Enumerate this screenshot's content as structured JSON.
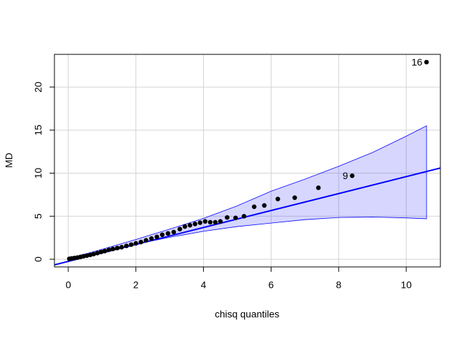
{
  "chart_data": {
    "type": "qqplot",
    "xlabel": "chisq quantiles",
    "ylabel": "MD",
    "xlim": [
      -0.41,
      11.01
    ],
    "ylim": [
      -0.89,
      23.8
    ],
    "xticks": [
      0,
      2,
      4,
      6,
      8,
      10
    ],
    "yticks": [
      0,
      5,
      10,
      15,
      20
    ],
    "grid": true,
    "point_color": "#000000",
    "line_color": "#0000ff",
    "band_color": "#0000ff",
    "x": [
      0.03,
      0.1,
      0.18,
      0.27,
      0.36,
      0.45,
      0.55,
      0.65,
      0.75,
      0.86,
      0.97,
      1.08,
      1.2,
      1.32,
      1.45,
      1.58,
      1.72,
      1.86,
      2.0,
      2.15,
      2.3,
      2.46,
      2.62,
      2.78,
      2.95,
      3.12,
      3.3,
      3.45,
      3.6,
      3.75,
      3.9,
      4.05,
      4.2,
      4.35,
      4.5,
      4.7,
      4.95,
      5.2,
      5.5,
      5.8,
      6.2,
      6.7,
      7.4,
      8.4,
      10.6
    ],
    "values": [
      0.05,
      0.1,
      0.15,
      0.2,
      0.27,
      0.35,
      0.42,
      0.5,
      0.6,
      0.72,
      0.85,
      0.95,
      1.1,
      1.2,
      1.3,
      1.4,
      1.55,
      1.7,
      1.85,
      2.0,
      2.2,
      2.4,
      2.6,
      2.85,
      3.0,
      3.15,
      3.5,
      3.8,
      3.95,
      4.1,
      4.25,
      4.4,
      4.3,
      4.3,
      4.4,
      4.85,
      4.8,
      5.0,
      6.1,
      6.25,
      7.0,
      7.15,
      8.3,
      9.7,
      22.9
    ],
    "labels": [
      null,
      null,
      null,
      null,
      null,
      null,
      null,
      null,
      null,
      null,
      null,
      null,
      null,
      null,
      null,
      null,
      null,
      null,
      null,
      null,
      null,
      null,
      null,
      null,
      null,
      null,
      null,
      null,
      null,
      null,
      null,
      null,
      null,
      null,
      null,
      null,
      null,
      null,
      null,
      null,
      null,
      null,
      null,
      "9",
      "16"
    ],
    "ref_line": {
      "intercept": -0.25,
      "slope": 0.985
    },
    "band_x": [
      0.03,
      1,
      2,
      3,
      4,
      5,
      6,
      7,
      8,
      9,
      10,
      10.6
    ],
    "band_upper": [
      0.12,
      1.15,
      2.3,
      3.5,
      4.75,
      6.2,
      7.9,
      9.3,
      10.8,
      12.4,
      14.3,
      15.5
    ],
    "band_lower": [
      -0.05,
      0.85,
      1.75,
      2.55,
      3.25,
      3.8,
      4.2,
      4.6,
      4.85,
      4.9,
      4.8,
      4.7
    ]
  }
}
